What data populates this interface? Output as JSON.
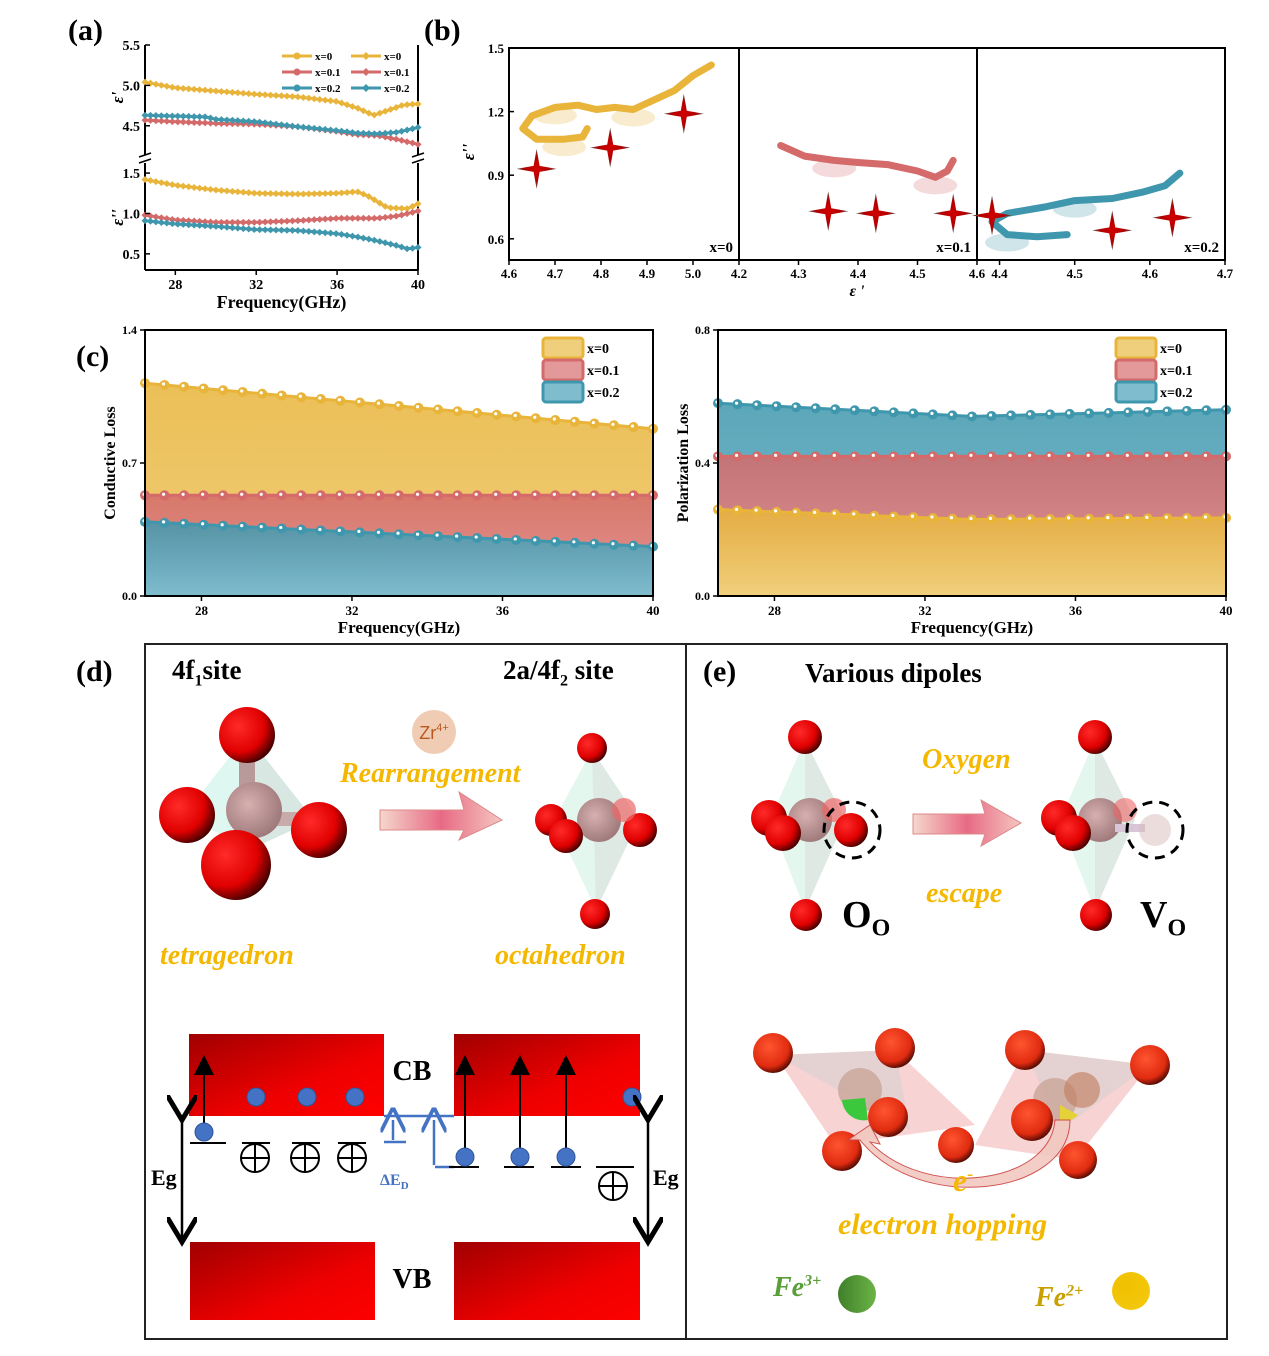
{
  "panels": {
    "a": {
      "label": "(a)"
    },
    "b": {
      "label": "(b)"
    },
    "c": {
      "label": "(c)"
    },
    "d": {
      "label": "(d)",
      "left_site": "4f",
      "left_site_sub": "1",
      "left_site_suffix": "site",
      "right_site_prefix": "2a/4f",
      "right_site_sub": "2",
      "right_site_suffix": " site",
      "ion": "Zr",
      "ion_sup": "4+",
      "arrow_label": "Rearrangement",
      "left_shape": "tetragedron",
      "right_shape": "octahedron",
      "band": {
        "cb": "CB",
        "vb": "VB",
        "eg": "Eg",
        "delta": "ΔE",
        "delta_sub": "D"
      }
    },
    "e": {
      "label": "(e)",
      "title": "Various dipoles",
      "arrow_top": "Oxygen",
      "arrow_bottom": "escape",
      "left_symbol": "O",
      "left_symbol_sub": "O",
      "right_symbol": "V",
      "right_symbol_sub": "O",
      "electron": "e",
      "electron_sup": "-",
      "hopping": "electron hopping",
      "fe3": "Fe",
      "fe3_sup": "3+",
      "fe2": "Fe",
      "fe2_sup": "2+",
      "fe3_color": "#5a9e3a",
      "fe2_color": "#f2c200"
    }
  },
  "colors": {
    "x0": "#e8b43a",
    "x01": "#d46a6a",
    "x02": "#3f97ad",
    "x0_fill": "#f0cf7c",
    "x01_fill": "#e3989a",
    "x02_fill": "#7fbcce",
    "star": "#c00000"
  },
  "chart_data": [
    {
      "id": "a",
      "type": "line",
      "xlabel": "Frequency(GHz)",
      "xlim": [
        26.5,
        40
      ],
      "xticks": [
        28,
        32,
        36,
        40
      ],
      "top": {
        "ylabel": "ε'",
        "ylim": [
          4.2,
          5.5
        ],
        "yticks": [
          4.5,
          5.0,
          5.5
        ],
        "series": [
          {
            "name": "x=0",
            "x": [
              26.5,
              28,
              30,
              32,
              34,
              36,
              37,
              37.8,
              38.5,
              39.3,
              40
            ],
            "y": [
              5.04,
              4.97,
              4.93,
              4.89,
              4.86,
              4.8,
              4.72,
              4.63,
              4.69,
              4.76,
              4.77
            ]
          },
          {
            "name": "x=0.1",
            "x": [
              26.5,
              28,
              30,
              32,
              34,
              36,
              37,
              38,
              39,
              40
            ],
            "y": [
              4.57,
              4.55,
              4.53,
              4.52,
              4.49,
              4.43,
              4.39,
              4.38,
              4.33,
              4.27
            ]
          },
          {
            "name": "x=0.2",
            "x": [
              26.5,
              28,
              29.5,
              30,
              32,
              34,
              36,
              37,
              38,
              39,
              40
            ],
            "y": [
              4.63,
              4.62,
              4.61,
              4.58,
              4.55,
              4.49,
              4.44,
              4.41,
              4.4,
              4.42,
              4.48
            ]
          }
        ]
      },
      "bottom": {
        "ylabel": "ε''",
        "ylim": [
          0.3,
          1.6
        ],
        "yticks": [
          0.5,
          1.0,
          1.5
        ],
        "series": [
          {
            "name": "x=0",
            "x": [
              26.5,
              28,
              30,
              32,
              34,
              36,
              37,
              37.5,
              38.5,
              39.5,
              40
            ],
            "y": [
              1.42,
              1.35,
              1.29,
              1.25,
              1.24,
              1.25,
              1.27,
              1.22,
              1.07,
              1.06,
              1.12
            ]
          },
          {
            "name": "x=0.1",
            "x": [
              26.5,
              28,
              30,
              32,
              34,
              36,
              38,
              39,
              40
            ],
            "y": [
              0.98,
              0.92,
              0.89,
              0.89,
              0.91,
              0.94,
              0.94,
              0.97,
              1.03
            ]
          },
          {
            "name": "x=0.2",
            "x": [
              26.5,
              28,
              30,
              32,
              34,
              36,
              37,
              38,
              39,
              39.5,
              40
            ],
            "y": [
              0.91,
              0.87,
              0.84,
              0.8,
              0.79,
              0.75,
              0.71,
              0.66,
              0.6,
              0.56,
              0.58
            ]
          }
        ]
      },
      "legend": [
        "x=0",
        "x=0.1",
        "x=0.2",
        "x=0",
        "x=0.1",
        "x=0.2"
      ]
    },
    {
      "id": "b",
      "type": "scatter",
      "xlabel": "ε '",
      "ylabel": "ε''",
      "ylim": [
        0.5,
        1.5
      ],
      "yticks": [
        0.6,
        0.9,
        1.2,
        1.5
      ],
      "subplots": [
        {
          "name": "x=0",
          "xlim": [
            4.6,
            5.1
          ],
          "xticks": [
            4.6,
            4.7,
            4.8,
            4.9,
            5.0
          ],
          "curve": [
            [
              4.77,
              1.12
            ],
            [
              4.76,
              1.08
            ],
            [
              4.72,
              1.07
            ],
            [
              4.66,
              1.07
            ],
            [
              4.63,
              1.12
            ],
            [
              4.65,
              1.18
            ],
            [
              4.7,
              1.22
            ],
            [
              4.75,
              1.23
            ],
            [
              4.79,
              1.21
            ],
            [
              4.83,
              1.22
            ],
            [
              4.87,
              1.21
            ],
            [
              4.92,
              1.26
            ],
            [
              4.96,
              1.3
            ],
            [
              5.0,
              1.37
            ],
            [
              5.04,
              1.42
            ]
          ],
          "stars": [
            [
              4.66,
              0.93
            ],
            [
              4.82,
              1.03
            ],
            [
              4.98,
              1.19
            ]
          ]
        },
        {
          "name": "x=0.1",
          "xlim": [
            4.2,
            4.6
          ],
          "xticks": [
            4.2,
            4.3,
            4.4,
            4.5,
            4.6
          ],
          "curve": [
            [
              4.27,
              1.04
            ],
            [
              4.31,
              0.99
            ],
            [
              4.36,
              0.97
            ],
            [
              4.4,
              0.96
            ],
            [
              4.45,
              0.95
            ],
            [
              4.5,
              0.92
            ],
            [
              4.53,
              0.89
            ],
            [
              4.55,
              0.92
            ],
            [
              4.56,
              0.97
            ]
          ],
          "stars": [
            [
              4.35,
              0.73
            ],
            [
              4.43,
              0.72
            ],
            [
              4.56,
              0.72
            ]
          ]
        },
        {
          "name": "x=0.2",
          "xlim": [
            4.37,
            4.7
          ],
          "xticks": [
            4.4,
            4.5,
            4.6,
            4.7
          ],
          "curve": [
            [
              4.49,
              0.62
            ],
            [
              4.45,
              0.61
            ],
            [
              4.41,
              0.62
            ],
            [
              4.39,
              0.68
            ],
            [
              4.41,
              0.72
            ],
            [
              4.46,
              0.75
            ],
            [
              4.5,
              0.78
            ],
            [
              4.55,
              0.79
            ],
            [
              4.59,
              0.82
            ],
            [
              4.62,
              0.85
            ],
            [
              4.64,
              0.91
            ]
          ],
          "stars": [
            [
              4.39,
              0.71
            ],
            [
              4.55,
              0.64
            ],
            [
              4.63,
              0.7
            ]
          ]
        }
      ]
    },
    {
      "id": "c-left",
      "type": "area",
      "title": "",
      "xlabel": "Frequency(GHz)",
      "ylabel": "Conductive  Loss",
      "xlim": [
        26.5,
        40
      ],
      "ylim": [
        0.0,
        1.4
      ],
      "xticks": [
        28,
        32,
        36,
        40
      ],
      "yticks": [
        0.0,
        0.7,
        1.4
      ],
      "legend": "top-right",
      "series": [
        {
          "name": "x=0",
          "start": 1.12,
          "end": 0.88
        },
        {
          "name": "x=0.1",
          "start": 0.53,
          "end": 0.53
        },
        {
          "name": "x=0.2",
          "start": 0.39,
          "end": 0.26
        }
      ]
    },
    {
      "id": "c-right",
      "type": "area",
      "title": "",
      "xlabel": "Frequency(GHz)",
      "ylabel": "Polarization Loss",
      "xlim": [
        26.5,
        40
      ],
      "ylim": [
        0.0,
        0.8
      ],
      "xticks": [
        28,
        32,
        36,
        40
      ],
      "yticks": [
        0.0,
        0.4,
        0.8
      ],
      "legend": "top-right",
      "series": [
        {
          "name": "x=0.2",
          "start": 0.58,
          "mid": 0.54,
          "end": 0.56
        },
        {
          "name": "x=0.1",
          "start": 0.42,
          "mid": 0.42,
          "end": 0.42
        },
        {
          "name": "x=0",
          "start": 0.26,
          "mid": 0.23,
          "end": 0.235
        }
      ],
      "legend_order": [
        "x=0",
        "x=0.1",
        "x=0.2"
      ]
    }
  ]
}
